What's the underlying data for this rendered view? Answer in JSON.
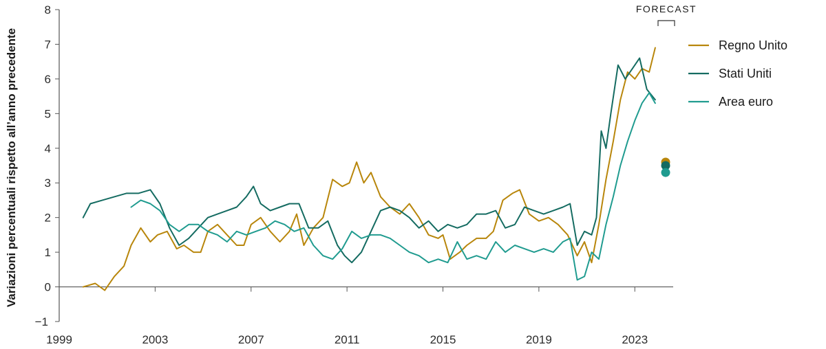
{
  "chart_data": {
    "type": "line",
    "title": "",
    "xlabel": "",
    "ylabel": "Variazioni percentuali rispetto all’anno precedente",
    "xlim": [
      1999,
      2024.6
    ],
    "ylim": [
      -1,
      8
    ],
    "x_ticks": [
      1999,
      2003,
      2007,
      2011,
      2015,
      2019,
      2023
    ],
    "y_ticks": [
      -1,
      0,
      1,
      2,
      3,
      4,
      5,
      6,
      7,
      8
    ],
    "grid": false,
    "legend_position": "top-right",
    "annotation": "FORECAST",
    "series": [
      {
        "name": "Regno Unito",
        "color": "#b8860b",
        "x": [
          2000.0,
          2000.5,
          2000.9,
          2001.3,
          2001.7,
          2002.0,
          2002.4,
          2002.8,
          2003.1,
          2003.5,
          2003.9,
          2004.2,
          2004.6,
          2004.9,
          2005.2,
          2005.6,
          2006.0,
          2006.4,
          2006.7,
          2007.0,
          2007.4,
          2007.8,
          2008.2,
          2008.6,
          2008.9,
          2009.2,
          2009.6,
          2010.0,
          2010.4,
          2010.8,
          2011.1,
          2011.4,
          2011.7,
          2012.0,
          2012.4,
          2012.8,
          2013.2,
          2013.6,
          2014.0,
          2014.4,
          2014.8,
          2015.0,
          2015.3,
          2015.7,
          2016.0,
          2016.4,
          2016.8,
          2017.1,
          2017.5,
          2017.9,
          2018.2,
          2018.6,
          2019.0,
          2019.4,
          2019.8,
          2020.2,
          2020.6,
          2020.9,
          2021.2,
          2021.5,
          2021.8,
          2022.1,
          2022.4,
          2022.7,
          2023.0,
          2023.3,
          2023.6,
          2023.85
        ],
        "values": [
          0.0,
          0.1,
          -0.1,
          0.3,
          0.6,
          1.2,
          1.7,
          1.3,
          1.5,
          1.6,
          1.1,
          1.2,
          1.0,
          1.0,
          1.6,
          1.8,
          1.5,
          1.2,
          1.2,
          1.8,
          2.0,
          1.6,
          1.3,
          1.6,
          2.1,
          1.2,
          1.7,
          2.0,
          3.1,
          2.9,
          3.0,
          3.6,
          3.0,
          3.3,
          2.6,
          2.3,
          2.1,
          2.4,
          2.0,
          1.5,
          1.4,
          1.5,
          0.8,
          1.0,
          1.2,
          1.4,
          1.4,
          1.6,
          2.5,
          2.7,
          2.8,
          2.1,
          1.9,
          2.0,
          1.8,
          1.5,
          0.9,
          1.3,
          0.7,
          1.8,
          3.1,
          4.2,
          5.4,
          6.2,
          6.0,
          6.3,
          6.2,
          6.9
        ]
      },
      {
        "name": "Stati Uniti",
        "color": "#146b61",
        "x": [
          2000.0,
          2000.3,
          2000.8,
          2001.3,
          2001.8,
          2002.3,
          2002.8,
          2003.2,
          2003.6,
          2004.0,
          2004.4,
          2004.8,
          2005.2,
          2005.6,
          2006.0,
          2006.4,
          2006.8,
          2007.1,
          2007.4,
          2007.8,
          2008.2,
          2008.6,
          2009.0,
          2009.4,
          2009.8,
          2010.2,
          2010.6,
          2010.9,
          2011.2,
          2011.6,
          2012.0,
          2012.4,
          2012.8,
          2013.2,
          2013.6,
          2014.0,
          2014.4,
          2014.8,
          2015.2,
          2015.6,
          2016.0,
          2016.4,
          2016.8,
          2017.2,
          2017.6,
          2018.0,
          2018.4,
          2018.8,
          2019.2,
          2019.6,
          2020.0,
          2020.3,
          2020.6,
          2020.9,
          2021.2,
          2021.4,
          2021.6,
          2021.8,
          2022.0,
          2022.3,
          2022.6,
          2022.9,
          2023.2,
          2023.5,
          2023.85
        ],
        "values": [
          2.0,
          2.4,
          2.5,
          2.6,
          2.7,
          2.7,
          2.8,
          2.4,
          1.7,
          1.2,
          1.4,
          1.7,
          2.0,
          2.1,
          2.2,
          2.3,
          2.6,
          2.9,
          2.4,
          2.2,
          2.3,
          2.4,
          2.4,
          1.7,
          1.7,
          1.9,
          1.2,
          0.9,
          0.7,
          1.0,
          1.6,
          2.2,
          2.3,
          2.2,
          2.0,
          1.7,
          1.9,
          1.6,
          1.8,
          1.7,
          1.8,
          2.1,
          2.1,
          2.2,
          1.7,
          1.8,
          2.3,
          2.2,
          2.1,
          2.2,
          2.3,
          2.4,
          1.2,
          1.6,
          1.5,
          2.0,
          4.5,
          4.0,
          5.0,
          6.4,
          6.0,
          6.3,
          6.6,
          5.7,
          5.4
        ]
      },
      {
        "name": "Area euro",
        "color": "#1f9b8f",
        "x": [
          2002.0,
          2002.4,
          2002.8,
          2003.2,
          2003.6,
          2004.0,
          2004.4,
          2004.8,
          2005.2,
          2005.6,
          2006.0,
          2006.4,
          2006.8,
          2007.2,
          2007.6,
          2008.0,
          2008.4,
          2008.8,
          2009.2,
          2009.6,
          2010.0,
          2010.4,
          2010.8,
          2011.2,
          2011.6,
          2012.0,
          2012.4,
          2012.8,
          2013.2,
          2013.6,
          2014.0,
          2014.4,
          2014.8,
          2015.2,
          2015.6,
          2016.0,
          2016.4,
          2016.8,
          2017.2,
          2017.6,
          2018.0,
          2018.4,
          2018.8,
          2019.2,
          2019.6,
          2020.0,
          2020.3,
          2020.6,
          2020.9,
          2021.2,
          2021.5,
          2021.8,
          2022.1,
          2022.4,
          2022.7,
          2023.0,
          2023.3,
          2023.6,
          2023.85
        ],
        "values": [
          2.3,
          2.5,
          2.4,
          2.2,
          1.8,
          1.6,
          1.8,
          1.8,
          1.6,
          1.5,
          1.3,
          1.6,
          1.5,
          1.6,
          1.7,
          1.9,
          1.8,
          1.6,
          1.7,
          1.2,
          0.9,
          0.8,
          1.1,
          1.6,
          1.4,
          1.5,
          1.5,
          1.4,
          1.2,
          1.0,
          0.9,
          0.7,
          0.8,
          0.7,
          1.3,
          0.8,
          0.9,
          0.8,
          1.3,
          1.0,
          1.2,
          1.1,
          1.0,
          1.1,
          1.0,
          1.3,
          1.4,
          0.2,
          0.3,
          1.0,
          0.8,
          1.8,
          2.6,
          3.5,
          4.2,
          4.8,
          5.3,
          5.6,
          5.3
        ]
      }
    ],
    "forecast_points": [
      {
        "series": "Regno Unito",
        "value": 3.6,
        "color": "#b8860b"
      },
      {
        "series": "Stati Uniti",
        "value": 3.5,
        "color": "#146b61"
      },
      {
        "series": "Area euro",
        "value": 3.3,
        "color": "#1f9b8f"
      }
    ]
  }
}
